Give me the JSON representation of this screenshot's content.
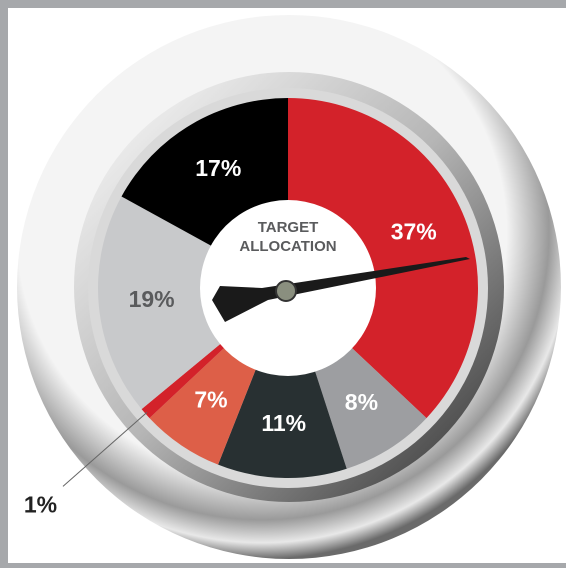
{
  "chart_data": {
    "type": "pie",
    "center_text": "TARGET ALLOCATION",
    "categories": [
      null,
      null,
      null,
      null,
      null,
      null,
      null
    ],
    "values": [
      37,
      8,
      11,
      7,
      1,
      19,
      17
    ],
    "value_labels": [
      "37%",
      "8%",
      "11%",
      "7%",
      "1%",
      "19%",
      "17%"
    ],
    "colors": [
      "#d3222a",
      "#9d9ea1",
      "#283032",
      "#dd5f48",
      "#d3222a",
      "#c8c9cb",
      "#000000"
    ]
  }
}
